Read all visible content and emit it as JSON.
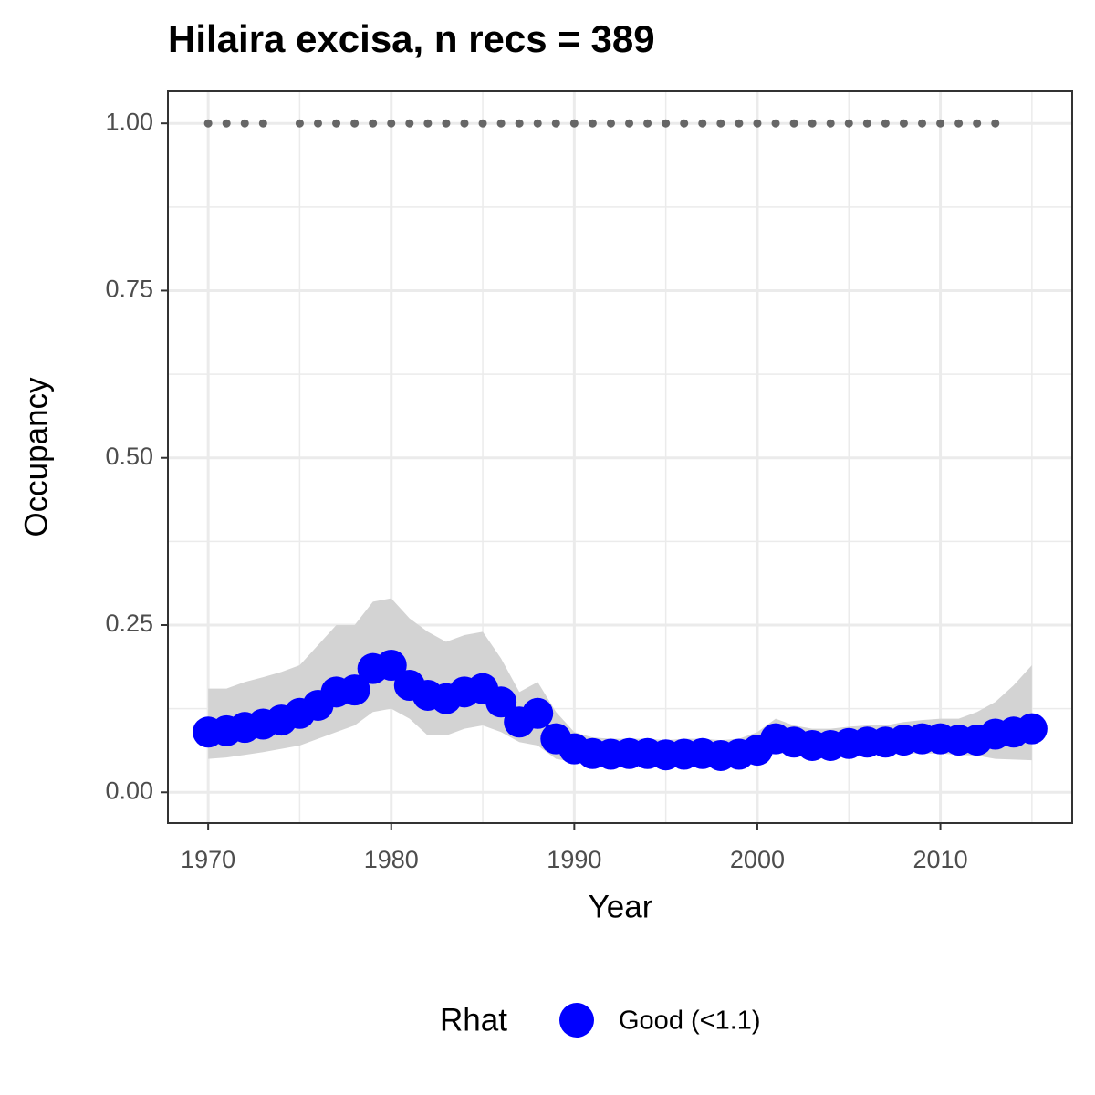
{
  "chart_data": {
    "type": "line",
    "title": "Hilaira excisa, n recs = 389",
    "x_label": "Year",
    "y_label": "Occupancy",
    "xlim": [
      1967.8,
      2017.2
    ],
    "ylim": [
      -0.046,
      1.048
    ],
    "xticks": [
      1970,
      1980,
      1990,
      2000,
      2010
    ],
    "yticks": [
      {
        "value": 0,
        "label": "0.00"
      },
      {
        "value": 0.25,
        "label": "0.25"
      },
      {
        "value": 0.5,
        "label": "0.50"
      },
      {
        "value": 0.75,
        "label": "0.75"
      },
      {
        "value": 1,
        "label": "1.00"
      }
    ],
    "x_minor_grid": [
      1975,
      1985,
      1995,
      2005,
      2015
    ],
    "y_minor_grid": [
      0.125,
      0.375,
      0.625,
      0.875
    ],
    "grid": true,
    "legend_title": "Rhat",
    "legend_position": "bottom",
    "ribbon_color": "#d3d3d3",
    "series": [
      {
        "name": "Good (<1.1)",
        "color": "#0000ff",
        "x": [
          1970,
          1971,
          1972,
          1973,
          1974,
          1975,
          1976,
          1977,
          1978,
          1979,
          1980,
          1981,
          1982,
          1983,
          1984,
          1985,
          1986,
          1987,
          1988,
          1989,
          1990,
          1991,
          1992,
          1993,
          1994,
          1995,
          1996,
          1997,
          1998,
          1999,
          2000,
          2001,
          2002,
          2003,
          2004,
          2005,
          2006,
          2007,
          2008,
          2009,
          2010,
          2011,
          2012,
          2013,
          2014,
          2015
        ],
        "values": [
          0.09,
          0.092,
          0.097,
          0.102,
          0.108,
          0.118,
          0.13,
          0.15,
          0.153,
          0.185,
          0.19,
          0.16,
          0.145,
          0.14,
          0.15,
          0.155,
          0.135,
          0.105,
          0.118,
          0.08,
          0.065,
          0.058,
          0.057,
          0.058,
          0.058,
          0.056,
          0.057,
          0.058,
          0.055,
          0.057,
          0.063,
          0.08,
          0.075,
          0.07,
          0.07,
          0.073,
          0.075,
          0.075,
          0.078,
          0.08,
          0.08,
          0.078,
          0.078,
          0.087,
          0.09,
          0.095
        ],
        "lower": [
          0.05,
          0.052,
          0.056,
          0.06,
          0.065,
          0.07,
          0.08,
          0.09,
          0.1,
          0.12,
          0.125,
          0.11,
          0.085,
          0.085,
          0.095,
          0.1,
          0.09,
          0.075,
          0.07,
          0.05,
          0.045,
          0.04,
          0.04,
          0.04,
          0.04,
          0.038,
          0.04,
          0.04,
          0.038,
          0.04,
          0.045,
          0.06,
          0.055,
          0.052,
          0.052,
          0.054,
          0.056,
          0.056,
          0.058,
          0.058,
          0.058,
          0.056,
          0.055,
          0.05,
          0.049,
          0.048
        ],
        "upper": [
          0.155,
          0.155,
          0.165,
          0.172,
          0.18,
          0.19,
          0.22,
          0.25,
          0.25,
          0.285,
          0.29,
          0.26,
          0.24,
          0.225,
          0.235,
          0.24,
          0.2,
          0.15,
          0.165,
          0.12,
          0.09,
          0.082,
          0.08,
          0.08,
          0.08,
          0.078,
          0.08,
          0.08,
          0.078,
          0.08,
          0.09,
          0.11,
          0.1,
          0.095,
          0.095,
          0.098,
          0.1,
          0.1,
          0.105,
          0.108,
          0.11,
          0.11,
          0.12,
          0.135,
          0.16,
          0.19
        ]
      }
    ],
    "records": {
      "color": "#666666",
      "x": [
        1970,
        1971,
        1972,
        1973,
        1975,
        1976,
        1977,
        1978,
        1979,
        1980,
        1981,
        1982,
        1983,
        1984,
        1985,
        1986,
        1987,
        1988,
        1989,
        1990,
        1991,
        1992,
        1993,
        1994,
        1995,
        1996,
        1997,
        1998,
        1999,
        2000,
        2001,
        2002,
        2003,
        2004,
        2005,
        2006,
        2007,
        2008,
        2009,
        2010,
        2011,
        2012,
        2013
      ],
      "values": [
        1,
        1,
        1,
        1,
        1,
        1,
        1,
        1,
        1,
        1,
        1,
        1,
        1,
        1,
        1,
        1,
        1,
        1,
        1,
        1,
        1,
        1,
        1,
        1,
        1,
        1,
        1,
        1,
        1,
        1,
        1,
        1,
        1,
        1,
        1,
        1,
        1,
        1,
        1,
        1,
        1,
        1,
        1
      ]
    }
  }
}
